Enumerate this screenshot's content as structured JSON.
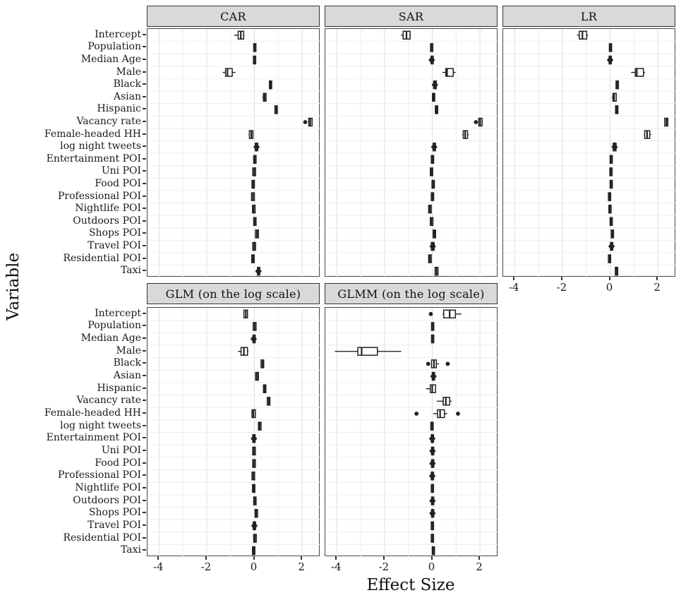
{
  "chart_data": {
    "type": "boxplot",
    "orientation": "horizontal",
    "title": "",
    "xlabel": "Effect Size",
    "ylabel": "Variable",
    "x_ticks": [
      -4,
      -2,
      0,
      2
    ],
    "x_minor": [
      -3,
      -1,
      1
    ],
    "xlim": [
      -4.48,
      2.77
    ],
    "grid": true,
    "colors": {
      "strip_bg": "#d9d9d9",
      "strip_border": "#333333",
      "panel_border": "#474747",
      "grid_major": "#dcdcdc",
      "grid_minor": "#ededed",
      "box_stroke": "#222222",
      "box_fill": "#ffffff",
      "text": "#1a1a1a"
    },
    "categories": [
      "Intercept",
      "Population",
      "Median Age",
      "Male",
      "Black",
      "Asian",
      "Hispanic",
      "Vacancy rate",
      "Female-headed HH",
      "log night tweets",
      "Entertainment POI",
      "Uni POI",
      "Food POI",
      "Professional POI",
      "Nightlife POI",
      "Outdoors POI",
      "Shops POI",
      "Travel POI",
      "Residential POI",
      "Taxi"
    ],
    "box_format": "b = [whisker_low, q1, median, q3, whisker_high]; o = outliers; d = diamond marker at median",
    "facets": [
      {
        "label": "CAR",
        "row": 0,
        "col": 0,
        "show_x": false,
        "show_y": true,
        "boxes": [
          {
            "b": [
              -0.85,
              -0.68,
              -0.57,
              -0.45,
              -0.42
            ]
          },
          {
            "b": [
              -0.03,
              -0.03,
              0.01,
              0.05,
              0.05
            ]
          },
          {
            "b": [
              -0.04,
              -0.04,
              0.0,
              0.04,
              0.04
            ]
          },
          {
            "b": [
              -1.33,
              -1.21,
              -1.13,
              -0.93,
              -0.8
            ]
          },
          {
            "b": [
              0.63,
              0.63,
              0.68,
              0.72,
              0.72
            ]
          },
          {
            "b": [
              0.33,
              0.38,
              0.43,
              0.49,
              0.49
            ]
          },
          {
            "b": [
              0.86,
              0.86,
              0.91,
              0.96,
              0.96
            ]
          },
          {
            "b": [
              2.25,
              2.28,
              2.34,
              2.42,
              2.44
            ],
            "o": [
              2.13
            ]
          },
          {
            "b": [
              -0.24,
              -0.21,
              -0.13,
              -0.06,
              -0.04
            ]
          },
          {
            "b": [
              0.0,
              0.04,
              0.09,
              0.14,
              0.18
            ],
            "d": true
          },
          {
            "b": [
              -0.03,
              -0.03,
              0.02,
              0.07,
              0.07
            ]
          },
          {
            "b": [
              -0.07,
              -0.07,
              -0.01,
              0.05,
              0.05
            ]
          },
          {
            "b": [
              -0.1,
              -0.1,
              -0.05,
              0.0,
              0.0
            ]
          },
          {
            "b": [
              -0.12,
              -0.12,
              -0.06,
              0.0,
              0.0
            ]
          },
          {
            "b": [
              -0.08,
              -0.08,
              -0.03,
              0.03,
              0.03
            ]
          },
          {
            "b": [
              -0.03,
              -0.03,
              0.02,
              0.07,
              0.07
            ]
          },
          {
            "b": [
              0.05,
              0.05,
              0.11,
              0.17,
              0.17
            ]
          },
          {
            "b": [
              -0.07,
              -0.07,
              -0.01,
              0.05,
              0.05
            ]
          },
          {
            "b": [
              -0.11,
              -0.11,
              -0.06,
              -0.01,
              -0.01
            ]
          },
          {
            "b": [
              0.09,
              0.13,
              0.17,
              0.22,
              0.26
            ],
            "d": true
          }
        ]
      },
      {
        "label": "SAR",
        "row": 0,
        "col": 1,
        "show_x": false,
        "show_y": false,
        "boxes": [
          {
            "b": [
              -1.31,
              -1.22,
              -1.08,
              -0.93,
              -0.9
            ]
          },
          {
            "b": [
              -0.07,
              -0.07,
              -0.03,
              0.01,
              0.01
            ]
          },
          {
            "b": [
              -0.08,
              -0.05,
              -0.02,
              0.02,
              0.05
            ],
            "d": true
          },
          {
            "b": [
              0.43,
              0.57,
              0.62,
              0.88,
              0.98
            ]
          },
          {
            "b": [
              0.02,
              0.06,
              0.11,
              0.17,
              0.2
            ],
            "d": true
          },
          {
            "b": [
              0.01,
              0.01,
              0.06,
              0.1,
              0.1
            ]
          },
          {
            "b": [
              0.13,
              0.13,
              0.18,
              0.23,
              0.23
            ]
          },
          {
            "b": [
              1.93,
              1.95,
              2.01,
              2.09,
              2.11
            ],
            "o": [
              1.83
            ]
          },
          {
            "b": [
              1.26,
              1.3,
              1.38,
              1.48,
              1.53
            ]
          },
          {
            "b": [
              0.0,
              0.04,
              0.08,
              0.13,
              0.17
            ],
            "d": true
          },
          {
            "b": [
              -0.04,
              -0.04,
              0.01,
              0.06,
              0.06
            ]
          },
          {
            "b": [
              -0.08,
              -0.08,
              -0.03,
              0.02,
              0.02
            ]
          },
          {
            "b": [
              -0.01,
              -0.01,
              0.04,
              0.09,
              0.09
            ]
          },
          {
            "b": [
              -0.04,
              -0.04,
              0.01,
              0.06,
              0.06
            ]
          },
          {
            "b": [
              -0.15,
              -0.15,
              -0.1,
              -0.04,
              -0.04
            ]
          },
          {
            "b": [
              -0.08,
              -0.08,
              -0.03,
              0.03,
              0.03
            ]
          },
          {
            "b": [
              0.04,
              0.04,
              0.09,
              0.14,
              0.14
            ]
          },
          {
            "b": [
              -0.08,
              -0.04,
              0.02,
              0.08,
              0.12
            ],
            "d": true
          },
          {
            "b": [
              -0.15,
              -0.15,
              -0.1,
              -0.04,
              -0.04
            ]
          },
          {
            "b": [
              0.12,
              0.12,
              0.18,
              0.24,
              0.24
            ]
          }
        ]
      },
      {
        "label": "LR",
        "row": 0,
        "col": 2,
        "show_x": true,
        "show_y": false,
        "boxes": [
          {
            "b": [
              -1.39,
              -1.29,
              -1.16,
              -0.98,
              -0.92
            ]
          },
          {
            "b": [
              -0.03,
              -0.03,
              0.01,
              0.06,
              0.06
            ]
          },
          {
            "b": [
              -0.1,
              -0.04,
              0.0,
              0.05,
              0.1
            ],
            "d": true
          },
          {
            "b": [
              0.88,
              1.06,
              1.12,
              1.4,
              1.47
            ]
          },
          {
            "b": [
              0.25,
              0.25,
              0.3,
              0.35,
              0.35
            ]
          },
          {
            "b": [
              0.07,
              0.12,
              0.17,
              0.26,
              0.26
            ]
          },
          {
            "b": [
              0.23,
              0.23,
              0.28,
              0.33,
              0.33
            ]
          },
          {
            "b": [
              2.29,
              2.29,
              2.36,
              2.42,
              2.42
            ]
          },
          {
            "b": [
              1.42,
              1.45,
              1.55,
              1.66,
              1.72
            ]
          },
          {
            "b": [
              0.08,
              0.13,
              0.19,
              0.25,
              0.3
            ],
            "d": true
          },
          {
            "b": [
              0.0,
              0.0,
              0.04,
              0.09,
              0.09
            ]
          },
          {
            "b": [
              -0.01,
              -0.01,
              0.03,
              0.07,
              0.07
            ]
          },
          {
            "b": [
              0.0,
              0.0,
              0.04,
              0.08,
              0.08
            ]
          },
          {
            "b": [
              -0.07,
              -0.07,
              -0.02,
              0.02,
              0.02
            ]
          },
          {
            "b": [
              -0.05,
              -0.05,
              -0.01,
              0.04,
              0.04
            ]
          },
          {
            "b": [
              0.0,
              0.0,
              0.04,
              0.08,
              0.08
            ]
          },
          {
            "b": [
              0.05,
              0.05,
              0.1,
              0.14,
              0.14
            ]
          },
          {
            "b": [
              -0.02,
              0.02,
              0.06,
              0.11,
              0.15
            ],
            "d": true
          },
          {
            "b": [
              -0.07,
              -0.07,
              -0.02,
              0.02,
              0.02
            ]
          },
          {
            "b": [
              0.22,
              0.22,
              0.27,
              0.32,
              0.32
            ]
          }
        ]
      },
      {
        "label": "GLM (on the log scale)",
        "row": 1,
        "col": 0,
        "show_x": true,
        "show_y": true,
        "boxes": [
          {
            "b": [
              -0.44,
              -0.44,
              -0.36,
              -0.29,
              -0.29
            ]
          },
          {
            "b": [
              -0.05,
              -0.05,
              0.01,
              0.07,
              0.07
            ]
          },
          {
            "b": [
              -0.1,
              -0.06,
              -0.03,
              0.01,
              0.05
            ],
            "d": true
          },
          {
            "b": [
              -0.69,
              -0.56,
              -0.44,
              -0.29,
              -0.25
            ]
          },
          {
            "b": [
              0.28,
              0.28,
              0.34,
              0.39,
              0.39
            ]
          },
          {
            "b": [
              0.05,
              0.05,
              0.11,
              0.17,
              0.17
            ]
          },
          {
            "b": [
              0.38,
              0.38,
              0.43,
              0.48,
              0.48
            ]
          },
          {
            "b": [
              0.54,
              0.54,
              0.6,
              0.65,
              0.65
            ]
          },
          {
            "b": [
              -0.12,
              -0.1,
              -0.04,
              0.04,
              0.06
            ]
          },
          {
            "b": [
              0.17,
              0.17,
              0.22,
              0.28,
              0.28
            ]
          },
          {
            "b": [
              -0.12,
              -0.07,
              -0.02,
              0.03,
              0.08
            ],
            "d": true
          },
          {
            "b": [
              -0.07,
              -0.07,
              -0.02,
              0.04,
              0.04
            ]
          },
          {
            "b": [
              -0.07,
              -0.07,
              -0.02,
              0.04,
              0.04
            ]
          },
          {
            "b": [
              -0.1,
              -0.1,
              -0.05,
              0.01,
              0.01
            ]
          },
          {
            "b": [
              -0.08,
              -0.08,
              -0.03,
              0.02,
              0.02
            ]
          },
          {
            "b": [
              -0.03,
              -0.03,
              0.02,
              0.07,
              0.07
            ]
          },
          {
            "b": [
              0.03,
              0.03,
              0.08,
              0.13,
              0.13
            ]
          },
          {
            "b": [
              -0.1,
              -0.05,
              0.0,
              0.05,
              0.1
            ],
            "d": true
          },
          {
            "b": [
              -0.03,
              -0.03,
              0.02,
              0.08,
              0.08
            ]
          },
          {
            "b": [
              -0.08,
              -0.08,
              -0.03,
              0.02,
              0.02
            ]
          }
        ]
      },
      {
        "label": "GLMM (on the log scale)",
        "row": 1,
        "col": 1,
        "show_x": true,
        "show_y": false,
        "boxes": [
          {
            "b": [
              0.43,
              0.48,
              0.73,
              0.97,
              1.22
            ],
            "o": [
              -0.06
            ]
          },
          {
            "b": [
              -0.03,
              -0.03,
              0.01,
              0.06,
              0.06
            ]
          },
          {
            "b": [
              -0.03,
              -0.03,
              0.01,
              0.06,
              0.06
            ]
          },
          {
            "b": [
              -4.08,
              -3.12,
              -2.96,
              -2.3,
              -1.3
            ]
          },
          {
            "b": [
              -0.05,
              -0.03,
              0.07,
              0.17,
              0.28
            ],
            "o": [
              -0.17,
              0.65
            ]
          },
          {
            "b": [
              -0.04,
              0.0,
              0.05,
              0.1,
              0.18
            ],
            "d": true
          },
          {
            "b": [
              -0.26,
              -0.08,
              0.0,
              0.14,
              0.16
            ]
          },
          {
            "b": [
              0.19,
              0.46,
              0.57,
              0.73,
              0.81
            ]
          },
          {
            "b": [
              0.04,
              0.22,
              0.33,
              0.51,
              0.63
            ],
            "o": [
              -0.66,
              1.08
            ]
          },
          {
            "b": [
              -0.06,
              -0.06,
              -0.01,
              0.04,
              0.04
            ]
          },
          {
            "b": [
              -0.08,
              -0.04,
              0.0,
              0.04,
              0.08
            ],
            "d": true
          },
          {
            "b": [
              -0.07,
              -0.03,
              0.01,
              0.04,
              0.08
            ],
            "d": true
          },
          {
            "b": [
              -0.06,
              -0.03,
              0.01,
              0.04,
              0.06
            ],
            "d": true
          },
          {
            "b": [
              -0.09,
              -0.04,
              0.0,
              0.05,
              0.09
            ],
            "d": true
          },
          {
            "b": [
              -0.04,
              -0.04,
              0.0,
              0.04,
              0.04
            ]
          },
          {
            "b": [
              -0.07,
              -0.03,
              0.01,
              0.04,
              0.07
            ],
            "d": true
          },
          {
            "b": [
              -0.07,
              -0.03,
              0.01,
              0.04,
              0.07
            ],
            "d": true
          },
          {
            "b": [
              -0.04,
              -0.04,
              0.0,
              0.04,
              0.04
            ]
          },
          {
            "b": [
              -0.04,
              -0.04,
              0.0,
              0.04,
              0.04
            ]
          },
          {
            "b": [
              0.0,
              0.0,
              0.04,
              0.09,
              0.09
            ]
          }
        ]
      }
    ]
  }
}
